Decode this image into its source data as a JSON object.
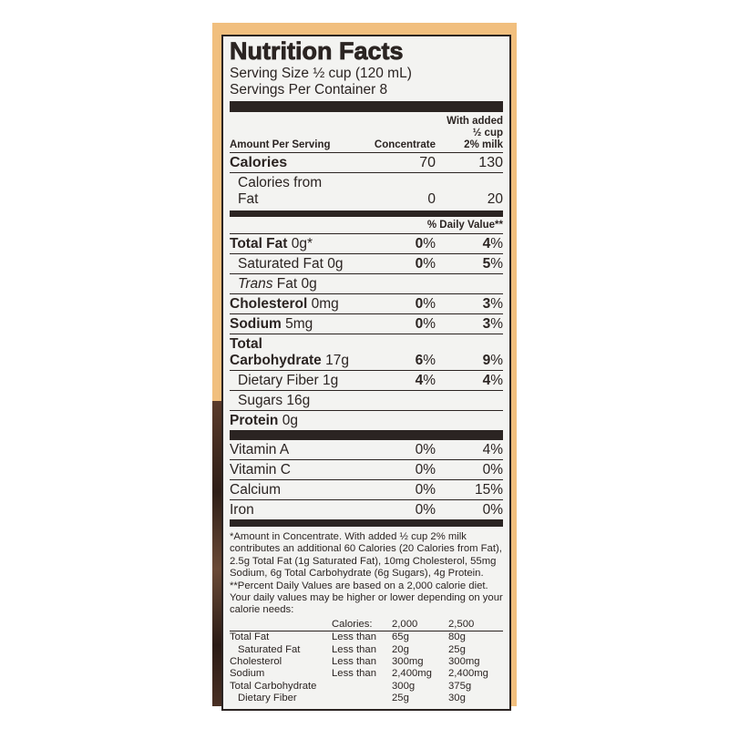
{
  "title": "Nutrition Facts",
  "serving_size": "Serving Size ½ cup (120 mL)",
  "servings_per_container": "Servings Per Container 8",
  "header": {
    "amount": "Amount Per Serving",
    "col1": "Concentrate",
    "col2_line1": "With added",
    "col2_line2": "½ cup",
    "col2_line3": "2% milk"
  },
  "calories": {
    "label": "Calories",
    "c1": "70",
    "c2": "130"
  },
  "calories_fat": {
    "label": "Calories from Fat",
    "c1": "0",
    "c2": "20"
  },
  "dv_header": "% Daily Value**",
  "nutrients": [
    {
      "bold": "Total Fat",
      "rest": " 0g*",
      "c1": "0",
      "c2": "4"
    },
    {
      "bold": "",
      "rest": "Saturated Fat 0g",
      "c1": "0",
      "c2": "5"
    },
    {
      "italic": "Trans",
      "rest": " Fat 0g"
    },
    {
      "bold": "Cholesterol",
      "rest": " 0mg",
      "c1": "0",
      "c2": "3"
    },
    {
      "bold": "Sodium",
      "rest": " 5mg",
      "c1": "0",
      "c2": "3"
    },
    {
      "bold1": "Total",
      "bold": "Carbohydrate",
      "rest": " 17g",
      "c1": "6",
      "c2": "9"
    },
    {
      "rest": "Dietary Fiber 1g",
      "c1": "4",
      "c2": "4"
    },
    {
      "rest": "Sugars  16g"
    },
    {
      "bold": "Protein",
      "rest": " 0g"
    }
  ],
  "pct": "%",
  "vitamins": [
    {
      "label": "Vitamin A",
      "c1": "0%",
      "c2": "4%"
    },
    {
      "label": "Vitamin C",
      "c1": "0%",
      "c2": "0%"
    },
    {
      "label": "Calcium",
      "c1": "0%",
      "c2": "15%"
    },
    {
      "label": "Iron",
      "c1": "0%",
      "c2": "0%"
    }
  ],
  "footnote": "*Amount in Concentrate. With added ½ cup 2% milk contributes an additional 60 Calories (20 Calories from Fat), 2.5g Total Fat (1g Saturated Fat), 10mg Cholesterol, 55mg Sodium, 6g Total Carbohydrate (6g Sugars), 4g Protein. **Percent Daily Values are based on a 2,000 calorie diet. Your daily values may be higher or lower depending on your calorie needs:",
  "dv_table": {
    "head": [
      "",
      "Calories:",
      "2,000",
      "2,500"
    ],
    "rows": [
      [
        "Total Fat",
        "Less than",
        "65g",
        "80g"
      ],
      [
        "Saturated Fat",
        "Less than",
        "20g",
        "25g"
      ],
      [
        "Cholesterol",
        "Less than",
        "300mg",
        "300mg"
      ],
      [
        "Sodium",
        "Less than",
        "2,400mg",
        "2,400mg"
      ],
      [
        "Total Carbohydrate",
        "",
        "300g",
        "375g"
      ],
      [
        "Dietary Fiber",
        "",
        "25g",
        "30g"
      ]
    ]
  },
  "colors": {
    "background_box": "#f1bf7e",
    "label": "#f3f3f1",
    "ink": "#2b2422"
  }
}
